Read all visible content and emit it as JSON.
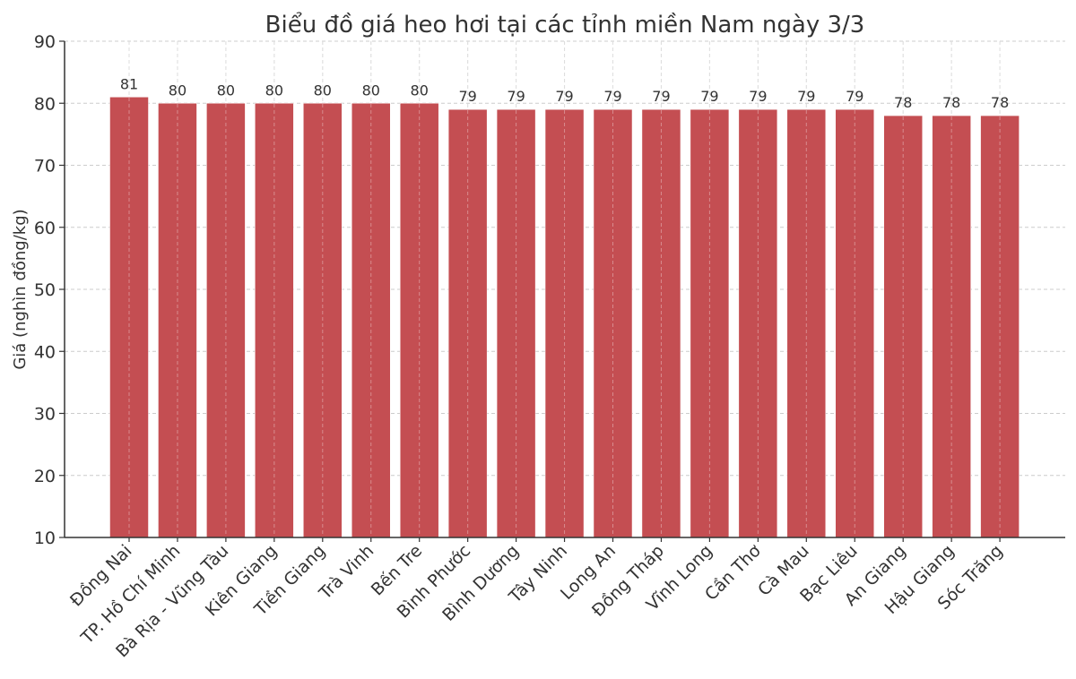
{
  "chart_data": {
    "type": "bar",
    "title": "Biểu đồ giá heo hơi tại các tỉnh miền Nam ngày 3/3",
    "xlabel": "",
    "ylabel": "Giá (nghìn đồng/kg)",
    "ylim": [
      10,
      90
    ],
    "yticks": [
      10,
      20,
      30,
      40,
      50,
      60,
      70,
      80,
      90
    ],
    "grid": true,
    "bar_color": "#c44e52",
    "categories": [
      "Đồng Nai",
      "TP. Hồ Chí Minh",
      "Bà Rịa - Vũng Tàu",
      "Kiên Giang",
      "Tiền Giang",
      "Trà Vinh",
      "Bến Tre",
      "Bình Phước",
      "Bình Dương",
      "Tây Ninh",
      "Long An",
      "Đồng Tháp",
      "Vĩnh Long",
      "Cần Thơ",
      "Cà Mau",
      "Bạc Liêu",
      "An Giang",
      "Hậu Giang",
      "Sóc Trăng"
    ],
    "values": [
      81,
      80,
      80,
      80,
      80,
      80,
      80,
      79,
      79,
      79,
      79,
      79,
      79,
      79,
      79,
      79,
      78,
      78,
      78
    ]
  }
}
